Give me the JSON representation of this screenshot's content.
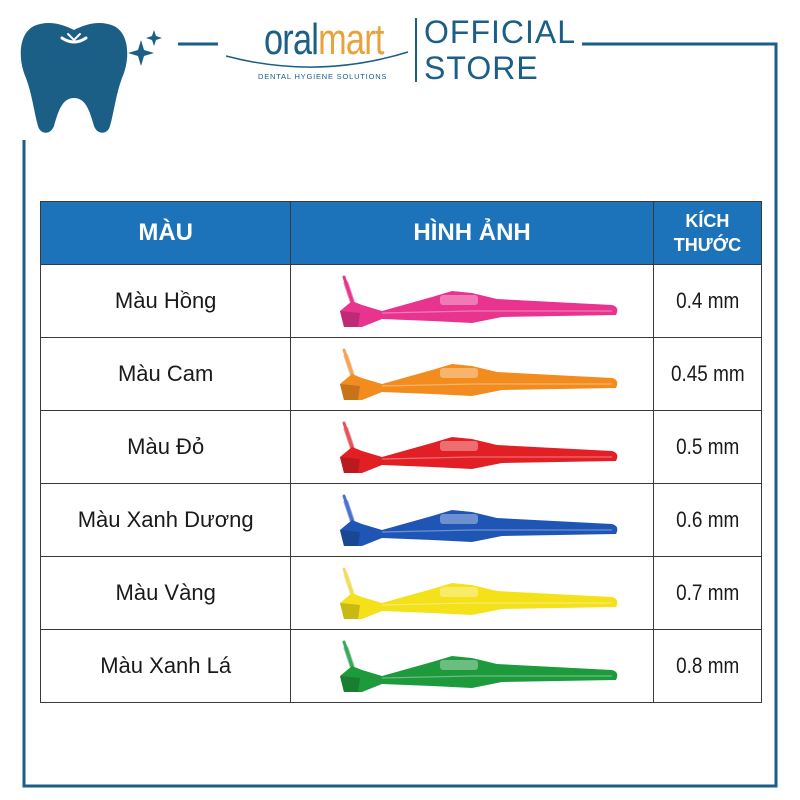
{
  "brand": {
    "logo_text_prefix": "oral",
    "logo_text_suffix": "mart",
    "tagline": "DENTAL HYGIENE SOLUTIONS",
    "store_line1": "OFFICIAL",
    "store_line2": "STORE",
    "primary_color": "#1b5e86",
    "accent_color": "#e9a23b",
    "icon": "tooth-icon"
  },
  "table": {
    "headers": {
      "color": "MÀU",
      "image": "HÌNH ẢNH",
      "size_line1": "KÍCH",
      "size_line2": "THƯỚC"
    },
    "header_color": "#1d73ba",
    "rows": [
      {
        "color_name": "Màu Hồng",
        "size": "0.4 mm",
        "brush_color": "#e8338f",
        "bristle_color": "#e8338f"
      },
      {
        "color_name": "Màu Cam",
        "size": "0.45 mm",
        "brush_color": "#f28c1e",
        "bristle_color": "#f5a25a"
      },
      {
        "color_name": "Màu Đỏ",
        "size": "0.5 mm",
        "brush_color": "#e31f26",
        "bristle_color": "#e8505a"
      },
      {
        "color_name": "Màu Xanh Dương",
        "size": "0.6 mm",
        "brush_color": "#1f56b5",
        "bristle_color": "#4a6fcf"
      },
      {
        "color_name": "Màu Vàng",
        "size": "0.7 mm",
        "brush_color": "#f5e11a",
        "bristle_color": "#f0dd60"
      },
      {
        "color_name": "Màu Xanh Lá",
        "size": "0.8 mm",
        "brush_color": "#1d9a3c",
        "bristle_color": "#3aa85a"
      }
    ]
  }
}
